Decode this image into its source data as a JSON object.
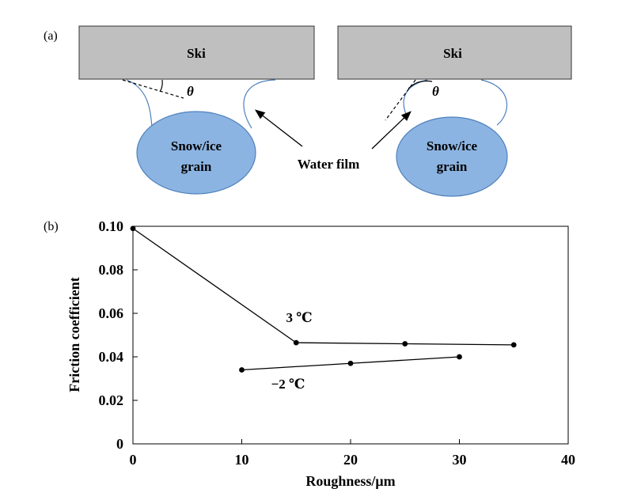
{
  "panel_a": {
    "label": "(a)",
    "ski_left_label": "Ski",
    "ski_right_label": "Ski",
    "angle_symbol_left": "θ",
    "angle_symbol_right": "θ",
    "grain_left_line1": "Snow/ice",
    "grain_left_line2": "grain",
    "grain_right_line1": "Snow/ice",
    "grain_right_line2": "grain",
    "water_film_label": "Water film",
    "colors": {
      "ski_fill": "#bfbfbf",
      "grain_fill": "#8cb4e2",
      "grain_stroke": "#4f81bd",
      "water_film_stroke": "#4f81bd"
    }
  },
  "panel_b": {
    "label": "(b)"
  },
  "chart_data": {
    "type": "line",
    "title": "",
    "xlabel": "Roughness/μm",
    "ylabel": "Friction coefficient",
    "xlim": [
      0,
      40
    ],
    "ylim": [
      0,
      0.1
    ],
    "xticks": [
      0,
      10,
      20,
      30,
      40
    ],
    "xtick_labels": [
      "0",
      "10",
      "20",
      "30",
      "40"
    ],
    "yticks": [
      0,
      0.02,
      0.04,
      0.06,
      0.08,
      0.1
    ],
    "ytick_labels": [
      "0",
      "0.02",
      "0.04",
      "0.06",
      "0.08",
      "0.10"
    ],
    "grid": false,
    "series": [
      {
        "name": "3 ℃",
        "x": [
          0,
          15,
          25,
          35
        ],
        "y": [
          0.099,
          0.0465,
          0.046,
          0.0455
        ]
      },
      {
        "name": "−2 ℃",
        "x": [
          10,
          20,
          30
        ],
        "y": [
          0.034,
          0.037,
          0.04
        ]
      }
    ]
  }
}
